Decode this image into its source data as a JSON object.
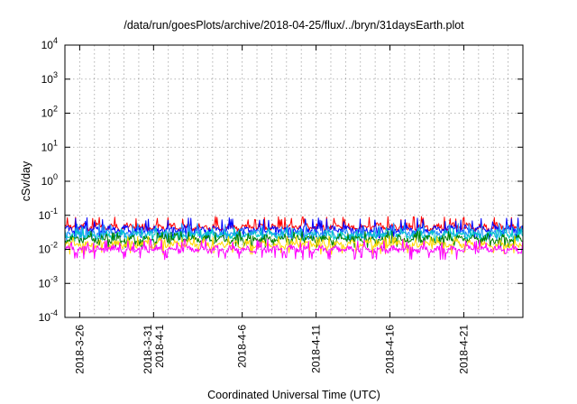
{
  "chart_data": {
    "type": "line",
    "title": "/data/run/goesPlots/archive/2018-04-25/flux/../bryn/31daysEarth.plot",
    "xlabel": "Coordinated Universal Time (UTC)",
    "ylabel": "cSv/day",
    "yscale": "log",
    "ylim": [
      0.0001,
      10000
    ],
    "xlim": [
      "2018-03-25",
      "2018-04-25"
    ],
    "grid": true,
    "legend": "none",
    "xticks": [
      {
        "date": "2018-03-26",
        "lines": [
          "2018-3-26"
        ]
      },
      {
        "date": "2018-03-31",
        "lines": [
          "2018-3-31",
          "2018-4-1"
        ]
      },
      {
        "date": "2018-04-06",
        "lines": [
          "2018-4-6"
        ]
      },
      {
        "date": "2018-04-11",
        "lines": [
          "2018-4-11"
        ]
      },
      {
        "date": "2018-04-16",
        "lines": [
          "2018-4-16"
        ]
      },
      {
        "date": "2018-04-21",
        "lines": [
          "2018-4-21"
        ]
      }
    ],
    "yticks": [
      {
        "value": 0.0001,
        "base": "10",
        "exp": "-4"
      },
      {
        "value": 0.001,
        "base": "10",
        "exp": "-3"
      },
      {
        "value": 0.01,
        "base": "10",
        "exp": "-2"
      },
      {
        "value": 0.1,
        "base": "10",
        "exp": "-1"
      },
      {
        "value": 1,
        "base": "10",
        "exp": "0"
      },
      {
        "value": 10,
        "base": "10",
        "exp": "1"
      },
      {
        "value": 100,
        "base": "10",
        "exp": "2"
      },
      {
        "value": 1000,
        "base": "10",
        "exp": "3"
      },
      {
        "value": 10000,
        "base": "10",
        "exp": "4"
      }
    ],
    "series": [
      {
        "color": "#ff0000",
        "typical": 0.045,
        "low": 0.036,
        "high": 0.095
      },
      {
        "color": "#0000ff",
        "typical": 0.038,
        "low": 0.02,
        "high": 0.085
      },
      {
        "color": "#1e90ff",
        "typical": 0.03,
        "low": 0.018,
        "high": 0.06
      },
      {
        "color": "#00c8c8",
        "typical": 0.026,
        "low": 0.017,
        "high": 0.045
      },
      {
        "color": "#008000",
        "typical": 0.02,
        "low": 0.011,
        "high": 0.035
      },
      {
        "color": "#ffd700",
        "typical": 0.014,
        "low": 0.007,
        "high": 0.025
      },
      {
        "color": "#ff00ff",
        "typical": 0.01,
        "low": 0.005,
        "high": 0.02
      }
    ]
  }
}
